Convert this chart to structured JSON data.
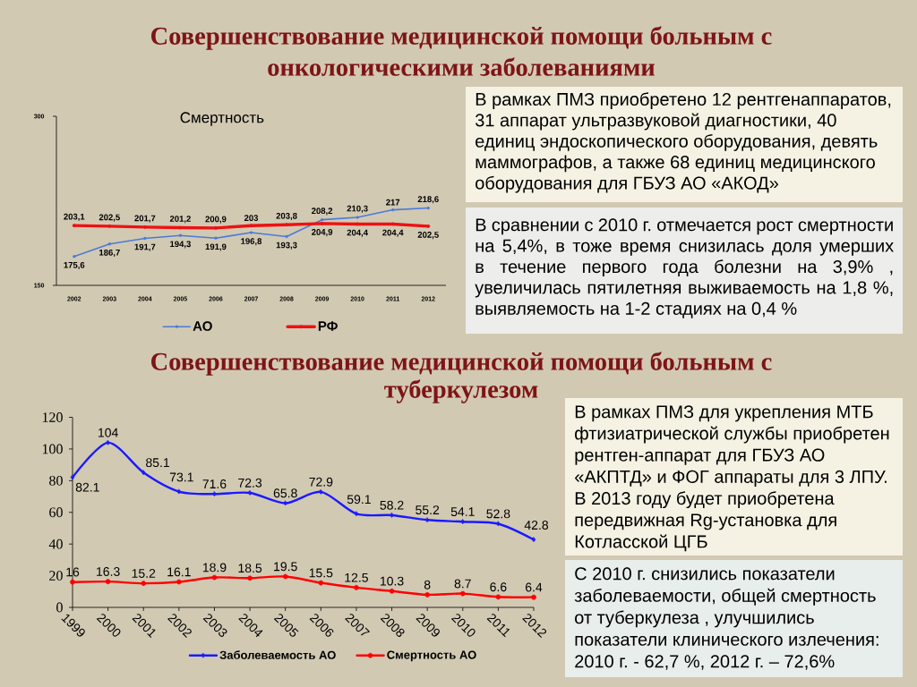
{
  "chart_data": [
    {
      "type": "line",
      "title": "Совершенствование медицинской помощи больным с онкологическими заболеваниями",
      "subtitle": "Смертность",
      "categories": [
        "2002",
        "2003",
        "2004",
        "2005",
        "2006",
        "2007",
        "2008",
        "2009",
        "2010",
        "2011",
        "2012"
      ],
      "series": [
        {
          "name": "АО",
          "color": "#4a7bd8",
          "marker": "circle",
          "values": [
            175.6,
            186.7,
            191.7,
            194.3,
            191.9,
            196.8,
            193.3,
            208.2,
            210.3,
            217,
            218.6
          ],
          "value_labels": [
            "175,6",
            "186,7",
            "191,7",
            "194,3",
            "191,9",
            "196,8",
            "193,3",
            "208,2",
            "210,3",
            "217",
            "218,6"
          ]
        },
        {
          "name": "РФ",
          "color": "#ee1111",
          "marker": "circle",
          "values": [
            203.1,
            202.5,
            201.7,
            201.2,
            200.9,
            203,
            203.8,
            204.9,
            204.4,
            204.4,
            202.5
          ],
          "value_labels": [
            "203,1",
            "202,5",
            "201,7",
            "201,2",
            "200,9",
            "203",
            "203,8",
            "204,9",
            "204,4",
            "204,4",
            "202,5"
          ]
        }
      ],
      "ylim": [
        150,
        300
      ],
      "yticks": [
        150,
        300
      ],
      "legend": "bottom"
    },
    {
      "type": "other",
      "annotations": [
        "В рамках ПМЗ приобретено 12 рентгенаппаратов, 31 аппарат ультразвуковой диагностики, 40 единиц эндоскопического оборудования, девять маммографов, а также 68 единиц медицинского оборудования для ГБУЗ АО «АКОД»"
      ]
    },
    {
      "type": "other",
      "annotations": [
        "В сравнении с 2010 г. отмечается рост смертности на 5,4%, в тоже время снизилась доля умерших в течение первого года болезни на 3,9% , увеличилась пятилетняя выживаемость на 1,8 %, выявляемость на 1-2 стадиях на 0,4 %"
      ]
    },
    {
      "type": "line",
      "title": "Совершенствование медицинской помощи больным с туберкулезом",
      "categories": [
        "1999",
        "2000",
        "2001",
        "2002",
        "2003",
        "2004",
        "2005",
        "2006",
        "2007",
        "2008",
        "2009",
        "2010",
        "2011",
        "2012"
      ],
      "series": [
        {
          "name": "Заболеваемость АО",
          "color": "#1a1aff",
          "marker": "diamond",
          "values": [
            82.1,
            104,
            85.1,
            73.1,
            71.6,
            72.3,
            65.8,
            72.9,
            59.1,
            58.2,
            55.2,
            54.1,
            52.8,
            42.8
          ]
        },
        {
          "name": "Смертность АО",
          "color": "#ff0000",
          "marker": "circle",
          "values": [
            16,
            16.3,
            15.2,
            16.1,
            18.9,
            18.5,
            19.5,
            15.5,
            12.5,
            10.3,
            8,
            8.7,
            6.6,
            6.4
          ]
        }
      ],
      "ylim": [
        0,
        120
      ],
      "yticks": [
        0,
        20,
        40,
        60,
        80,
        100,
        120
      ],
      "data_labels": true,
      "legend": "bottom"
    },
    {
      "type": "other",
      "annotations": [
        "В рамках ПМЗ для укрепления МТБ фтизиатрической службы приобретен рентген-аппарат для ГБУЗ АО «АКПТД» и ФОГ аппараты для 3 ЛПУ. В 2013 году будет приобретена передвижная Rg-установка для Котласской ЦГБ"
      ]
    },
    {
      "type": "other",
      "annotations": [
        "С 2010 г. снизились показатели заболеваемости, общей смертность от туберкулеза , улучшились показатели клинического излечения: 2010 г. - 62,7 %, 2012 г. – 72,6%"
      ]
    }
  ]
}
